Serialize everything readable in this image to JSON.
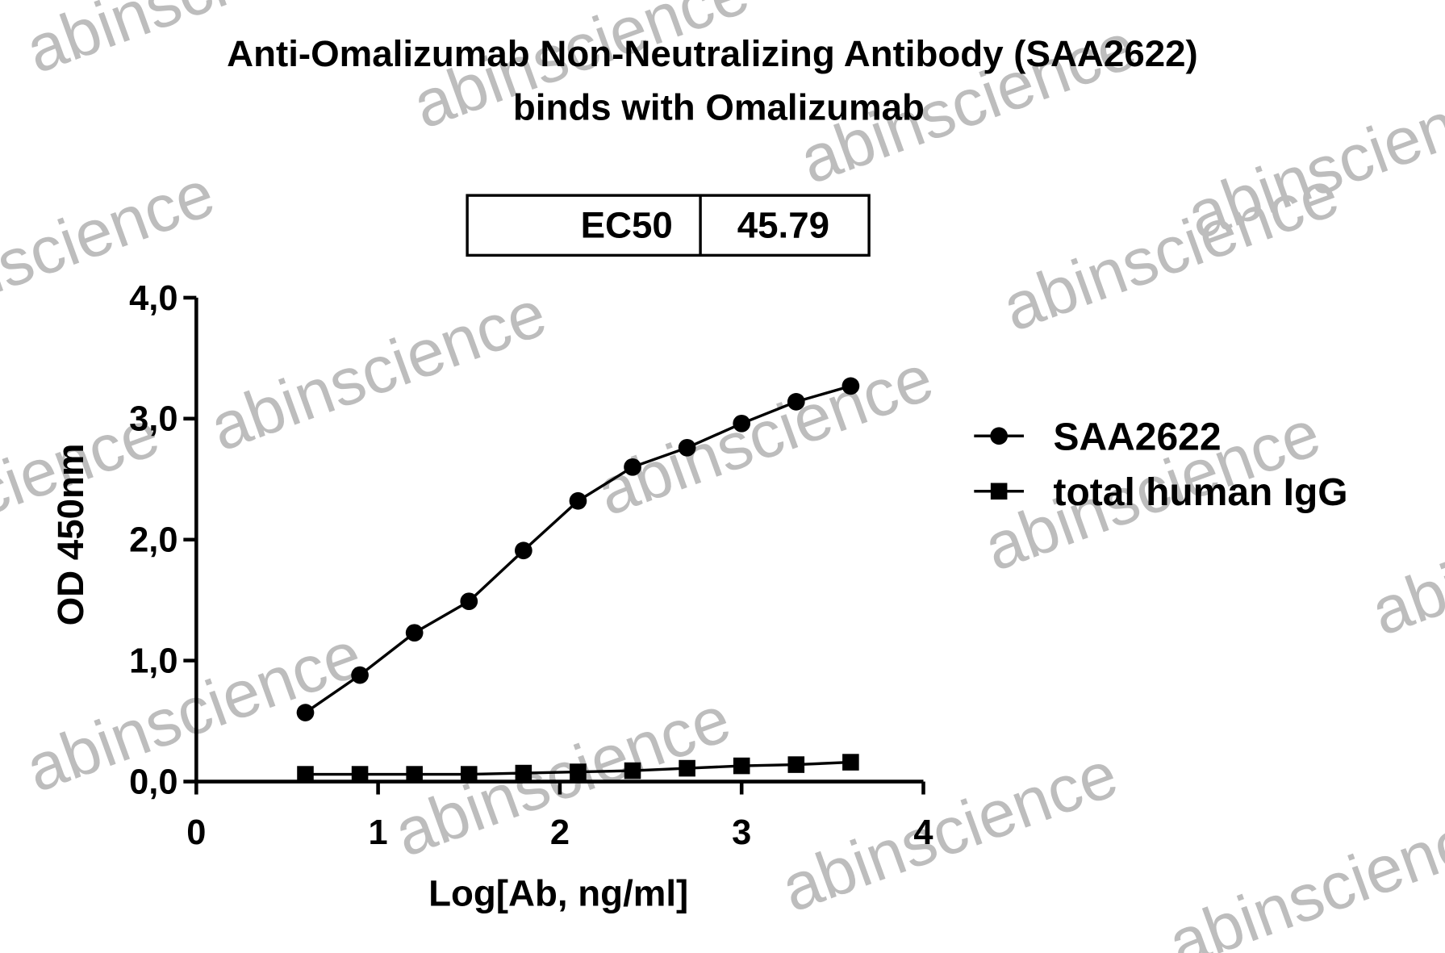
{
  "chart_data": {
    "type": "line",
    "title": "Anti-Omalizumab Non-Neutralizing Antibody (SAA2622)",
    "subtitle": "binds with Omalizumab",
    "ec50_label": "EC50",
    "ec50_value": 45.79,
    "x_label": "Log[Ab, ng/ml]",
    "y_label": "OD 450nm",
    "x": [
      0.6,
      0.9,
      1.2,
      1.5,
      1.8,
      2.1,
      2.4,
      2.7,
      3.0,
      3.3,
      3.6
    ],
    "series": [
      {
        "name": "SAA2622",
        "color": "#000000",
        "marker": "circle",
        "values": [
          0.57,
          0.88,
          1.23,
          1.49,
          1.91,
          2.32,
          2.6,
          2.76,
          2.96,
          3.14,
          3.27
        ]
      },
      {
        "name": "total human IgG",
        "color": "#000000",
        "marker": "square",
        "values": [
          0.06,
          0.06,
          0.06,
          0.06,
          0.07,
          0.08,
          0.09,
          0.11,
          0.13,
          0.14,
          0.16
        ]
      }
    ],
    "xlim": [
      0,
      4
    ],
    "xticks": [
      0,
      1,
      2,
      3,
      4
    ],
    "ylim": [
      0,
      4
    ],
    "yticks": [
      {
        "value": 0,
        "label": "0,0"
      },
      {
        "value": 1,
        "label": "1,0"
      },
      {
        "value": 2,
        "label": "2,0"
      },
      {
        "value": 3,
        "label": "3,0"
      },
      {
        "value": 4,
        "label": "4,0"
      }
    ],
    "legend": "right",
    "watermark": "abinscience"
  }
}
